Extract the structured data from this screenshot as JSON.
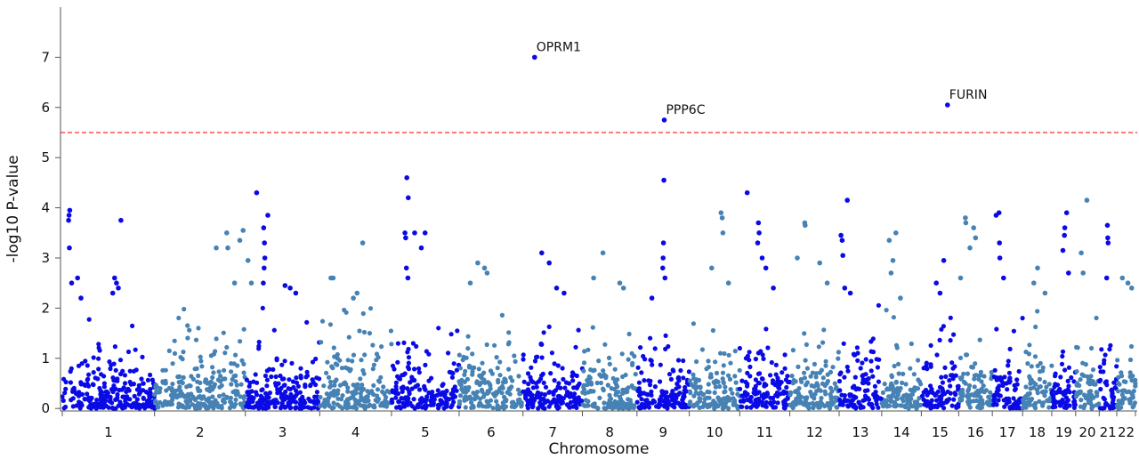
{
  "chart_data": {
    "type": "scatter",
    "title": "",
    "xlabel": "Chromosome",
    "ylabel": "-log10 P-value",
    "ylim": [
      -0.05,
      8.0
    ],
    "yticks": [
      0,
      1,
      2,
      3,
      4,
      5,
      6,
      7
    ],
    "threshold": {
      "value": 5.5,
      "color": "#ff2a2a",
      "style": "dashed"
    },
    "colors": {
      "odd": "#0a0ae6",
      "even": "#4682b4"
    },
    "grid": false,
    "legend": "none",
    "chromosomes": [
      {
        "label": "1",
        "start": 0,
        "end": 247,
        "peaks": [
          [
            20,
            3.95
          ],
          [
            18,
            3.85
          ],
          [
            17,
            3.75
          ],
          [
            19,
            3.2
          ],
          [
            41,
            2.6
          ],
          [
            25,
            2.5
          ],
          [
            50,
            2.2
          ],
          [
            157,
            3.75
          ],
          [
            140,
            2.6
          ],
          [
            150,
            2.4
          ],
          [
            145,
            2.5
          ],
          [
            135,
            2.3
          ]
        ]
      },
      {
        "label": "2",
        "start": 247,
        "end": 490,
        "peaks": [
          [
            165,
            3.2
          ],
          [
            193,
            3.5
          ],
          [
            196,
            3.2
          ],
          [
            228,
            3.35
          ],
          [
            237,
            3.55
          ],
          [
            250,
            2.95
          ],
          [
            259,
            2.5
          ],
          [
            214,
            2.5
          ]
        ]
      },
      {
        "label": "3",
        "start": 490,
        "end": 689,
        "peaks": [
          [
            30,
            4.3
          ],
          [
            60,
            3.85
          ],
          [
            49,
            3.6
          ],
          [
            51,
            3.3
          ],
          [
            52,
            3.0
          ],
          [
            50,
            2.8
          ],
          [
            48,
            2.5
          ],
          [
            106,
            2.45
          ],
          [
            120,
            2.4
          ],
          [
            135,
            2.3
          ]
        ]
      },
      {
        "label": "4",
        "start": 689,
        "end": 881,
        "peaks": [
          [
            30,
            2.6
          ],
          [
            36,
            2.6
          ],
          [
            115,
            3.3
          ],
          [
            90,
            2.2
          ],
          [
            100,
            2.3
          ]
        ]
      },
      {
        "label": "5",
        "start": 881,
        "end": 1062,
        "peaks": [
          [
            41,
            4.6
          ],
          [
            45,
            4.2
          ],
          [
            36,
            3.5
          ],
          [
            38,
            3.4
          ],
          [
            62,
            3.5
          ],
          [
            90,
            3.5
          ],
          [
            80,
            3.2
          ],
          [
            40,
            2.8
          ],
          [
            44,
            2.6
          ]
        ]
      },
      {
        "label": "6",
        "start": 1062,
        "end": 1233,
        "peaks": [
          [
            50,
            2.9
          ],
          [
            68,
            2.8
          ],
          [
            75,
            2.7
          ],
          [
            30,
            2.5
          ]
        ]
      },
      {
        "label": "7",
        "start": 1233,
        "end": 1392,
        "peaks": [
          [
            31,
            7.0
          ],
          [
            50,
            3.1
          ],
          [
            70,
            2.9
          ],
          [
            90,
            2.4
          ],
          [
            110,
            2.3
          ]
        ]
      },
      {
        "label": "8",
        "start": 1392,
        "end": 1538,
        "peaks": [
          [
            55,
            3.1
          ],
          [
            30,
            2.6
          ],
          [
            100,
            2.5
          ],
          [
            110,
            2.4
          ]
        ]
      },
      {
        "label": "9",
        "start": 1538,
        "end": 1678,
        "peaks": [
          [
            73,
            5.75
          ],
          [
            72,
            4.55
          ],
          [
            71,
            3.3
          ],
          [
            70,
            3.0
          ],
          [
            69,
            2.8
          ],
          [
            75,
            2.6
          ],
          [
            40,
            2.2
          ]
        ]
      },
      {
        "label": "10",
        "start": 1678,
        "end": 1813,
        "peaks": [
          [
            85,
            3.9
          ],
          [
            88,
            3.8
          ],
          [
            90,
            3.5
          ],
          [
            60,
            2.8
          ],
          [
            105,
            2.5
          ]
        ]
      },
      {
        "label": "11",
        "start": 1813,
        "end": 1947,
        "peaks": [
          [
            20,
            4.3
          ],
          [
            50,
            3.7
          ],
          [
            52,
            3.5
          ],
          [
            48,
            3.3
          ],
          [
            60,
            3.0
          ],
          [
            70,
            2.8
          ],
          [
            90,
            2.4
          ]
        ]
      },
      {
        "label": "12",
        "start": 1947,
        "end": 2079,
        "peaks": [
          [
            40,
            3.7
          ],
          [
            41,
            3.65
          ],
          [
            20,
            3.0
          ],
          [
            80,
            2.9
          ],
          [
            100,
            2.5
          ]
        ]
      },
      {
        "label": "13",
        "start": 2079,
        "end": 2193,
        "peaks": [
          [
            22,
            4.15
          ],
          [
            5,
            3.45
          ],
          [
            8,
            3.35
          ],
          [
            10,
            3.05
          ],
          [
            15,
            2.4
          ],
          [
            30,
            2.3
          ]
        ]
      },
      {
        "label": "14",
        "start": 2193,
        "end": 2299,
        "peaks": [
          [
            20,
            3.35
          ],
          [
            38,
            3.5
          ],
          [
            30,
            2.95
          ],
          [
            25,
            2.7
          ],
          [
            50,
            2.2
          ]
        ]
      },
      {
        "label": "15",
        "start": 2299,
        "end": 2399,
        "peaks": [
          [
            70,
            6.05
          ],
          [
            60,
            2.95
          ],
          [
            40,
            2.5
          ],
          [
            50,
            2.3
          ]
        ]
      },
      {
        "label": "16",
        "start": 2399,
        "end": 2489,
        "peaks": [
          [
            18,
            3.8
          ],
          [
            19,
            3.7
          ],
          [
            30,
            3.2
          ],
          [
            40,
            3.6
          ],
          [
            45,
            3.4
          ],
          [
            5,
            2.6
          ]
        ]
      },
      {
        "label": "17",
        "start": 2489,
        "end": 2570,
        "peaks": [
          [
            10,
            3.85
          ],
          [
            18,
            3.9
          ],
          [
            19,
            3.3
          ],
          [
            20,
            3.0
          ],
          [
            30,
            2.6
          ]
        ]
      },
      {
        "label": "18",
        "start": 2570,
        "end": 2648,
        "peaks": [
          [
            40,
            2.8
          ],
          [
            30,
            2.5
          ],
          [
            60,
            2.3
          ]
        ]
      },
      {
        "label": "19",
        "start": 2648,
        "end": 2712,
        "peaks": [
          [
            40,
            3.9
          ],
          [
            35,
            3.6
          ],
          [
            34,
            3.45
          ],
          [
            30,
            3.15
          ],
          [
            45,
            2.7
          ]
        ]
      },
      {
        "label": "20",
        "start": 2712,
        "end": 2775,
        "peaks": [
          [
            15,
            3.1
          ],
          [
            30,
            4.15
          ],
          [
            20,
            2.7
          ]
        ]
      },
      {
        "label": "21",
        "start": 2775,
        "end": 2822,
        "peaks": [
          [
            22,
            3.65
          ],
          [
            23,
            3.4
          ],
          [
            24,
            3.3
          ],
          [
            20,
            2.6
          ]
        ]
      },
      {
        "label": "22",
        "start": 2822,
        "end": 2872,
        "peaks": [
          [
            15,
            2.6
          ],
          [
            30,
            2.5
          ],
          [
            40,
            2.4
          ]
        ]
      }
    ],
    "annotations": [
      {
        "label": "OPRM1",
        "chrom": "7",
        "pos": 31,
        "y": 7.0
      },
      {
        "label": "PPP6C",
        "chrom": "9",
        "pos": 73,
        "y": 5.75
      },
      {
        "label": "FURIN",
        "chrom": "15",
        "pos": 70,
        "y": 6.05
      }
    ]
  }
}
